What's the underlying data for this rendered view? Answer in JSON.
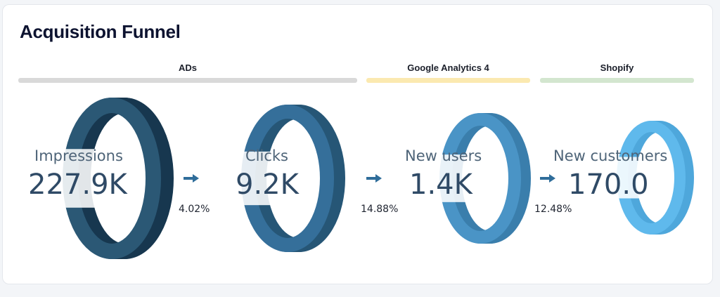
{
  "title": "Acquisition Funnel",
  "groups": [
    {
      "label": "ADs",
      "color": "#d9d9d9"
    },
    {
      "label": "Google Analytics 4",
      "color": "#fbe9b0"
    },
    {
      "label": "Shopify",
      "color": "#d3e6cf"
    }
  ],
  "stages": [
    {
      "name": "Impressions",
      "value": "227.9K",
      "front": "#2b5875",
      "back": "#17374f"
    },
    {
      "name": "Clicks",
      "value": "9.2K",
      "front": "#356f9a",
      "back": "#265676"
    },
    {
      "name": "New users",
      "value": "1.4K",
      "front": "#4a94c6",
      "back": "#3a7eac"
    },
    {
      "name": "New customers",
      "value": "170.0",
      "front": "#5fb9ec",
      "back": "#4ea7db"
    }
  ],
  "rates": [
    "4.02%",
    "14.88%",
    "12.48%"
  ],
  "arrow_color": "#2f6d9a"
}
